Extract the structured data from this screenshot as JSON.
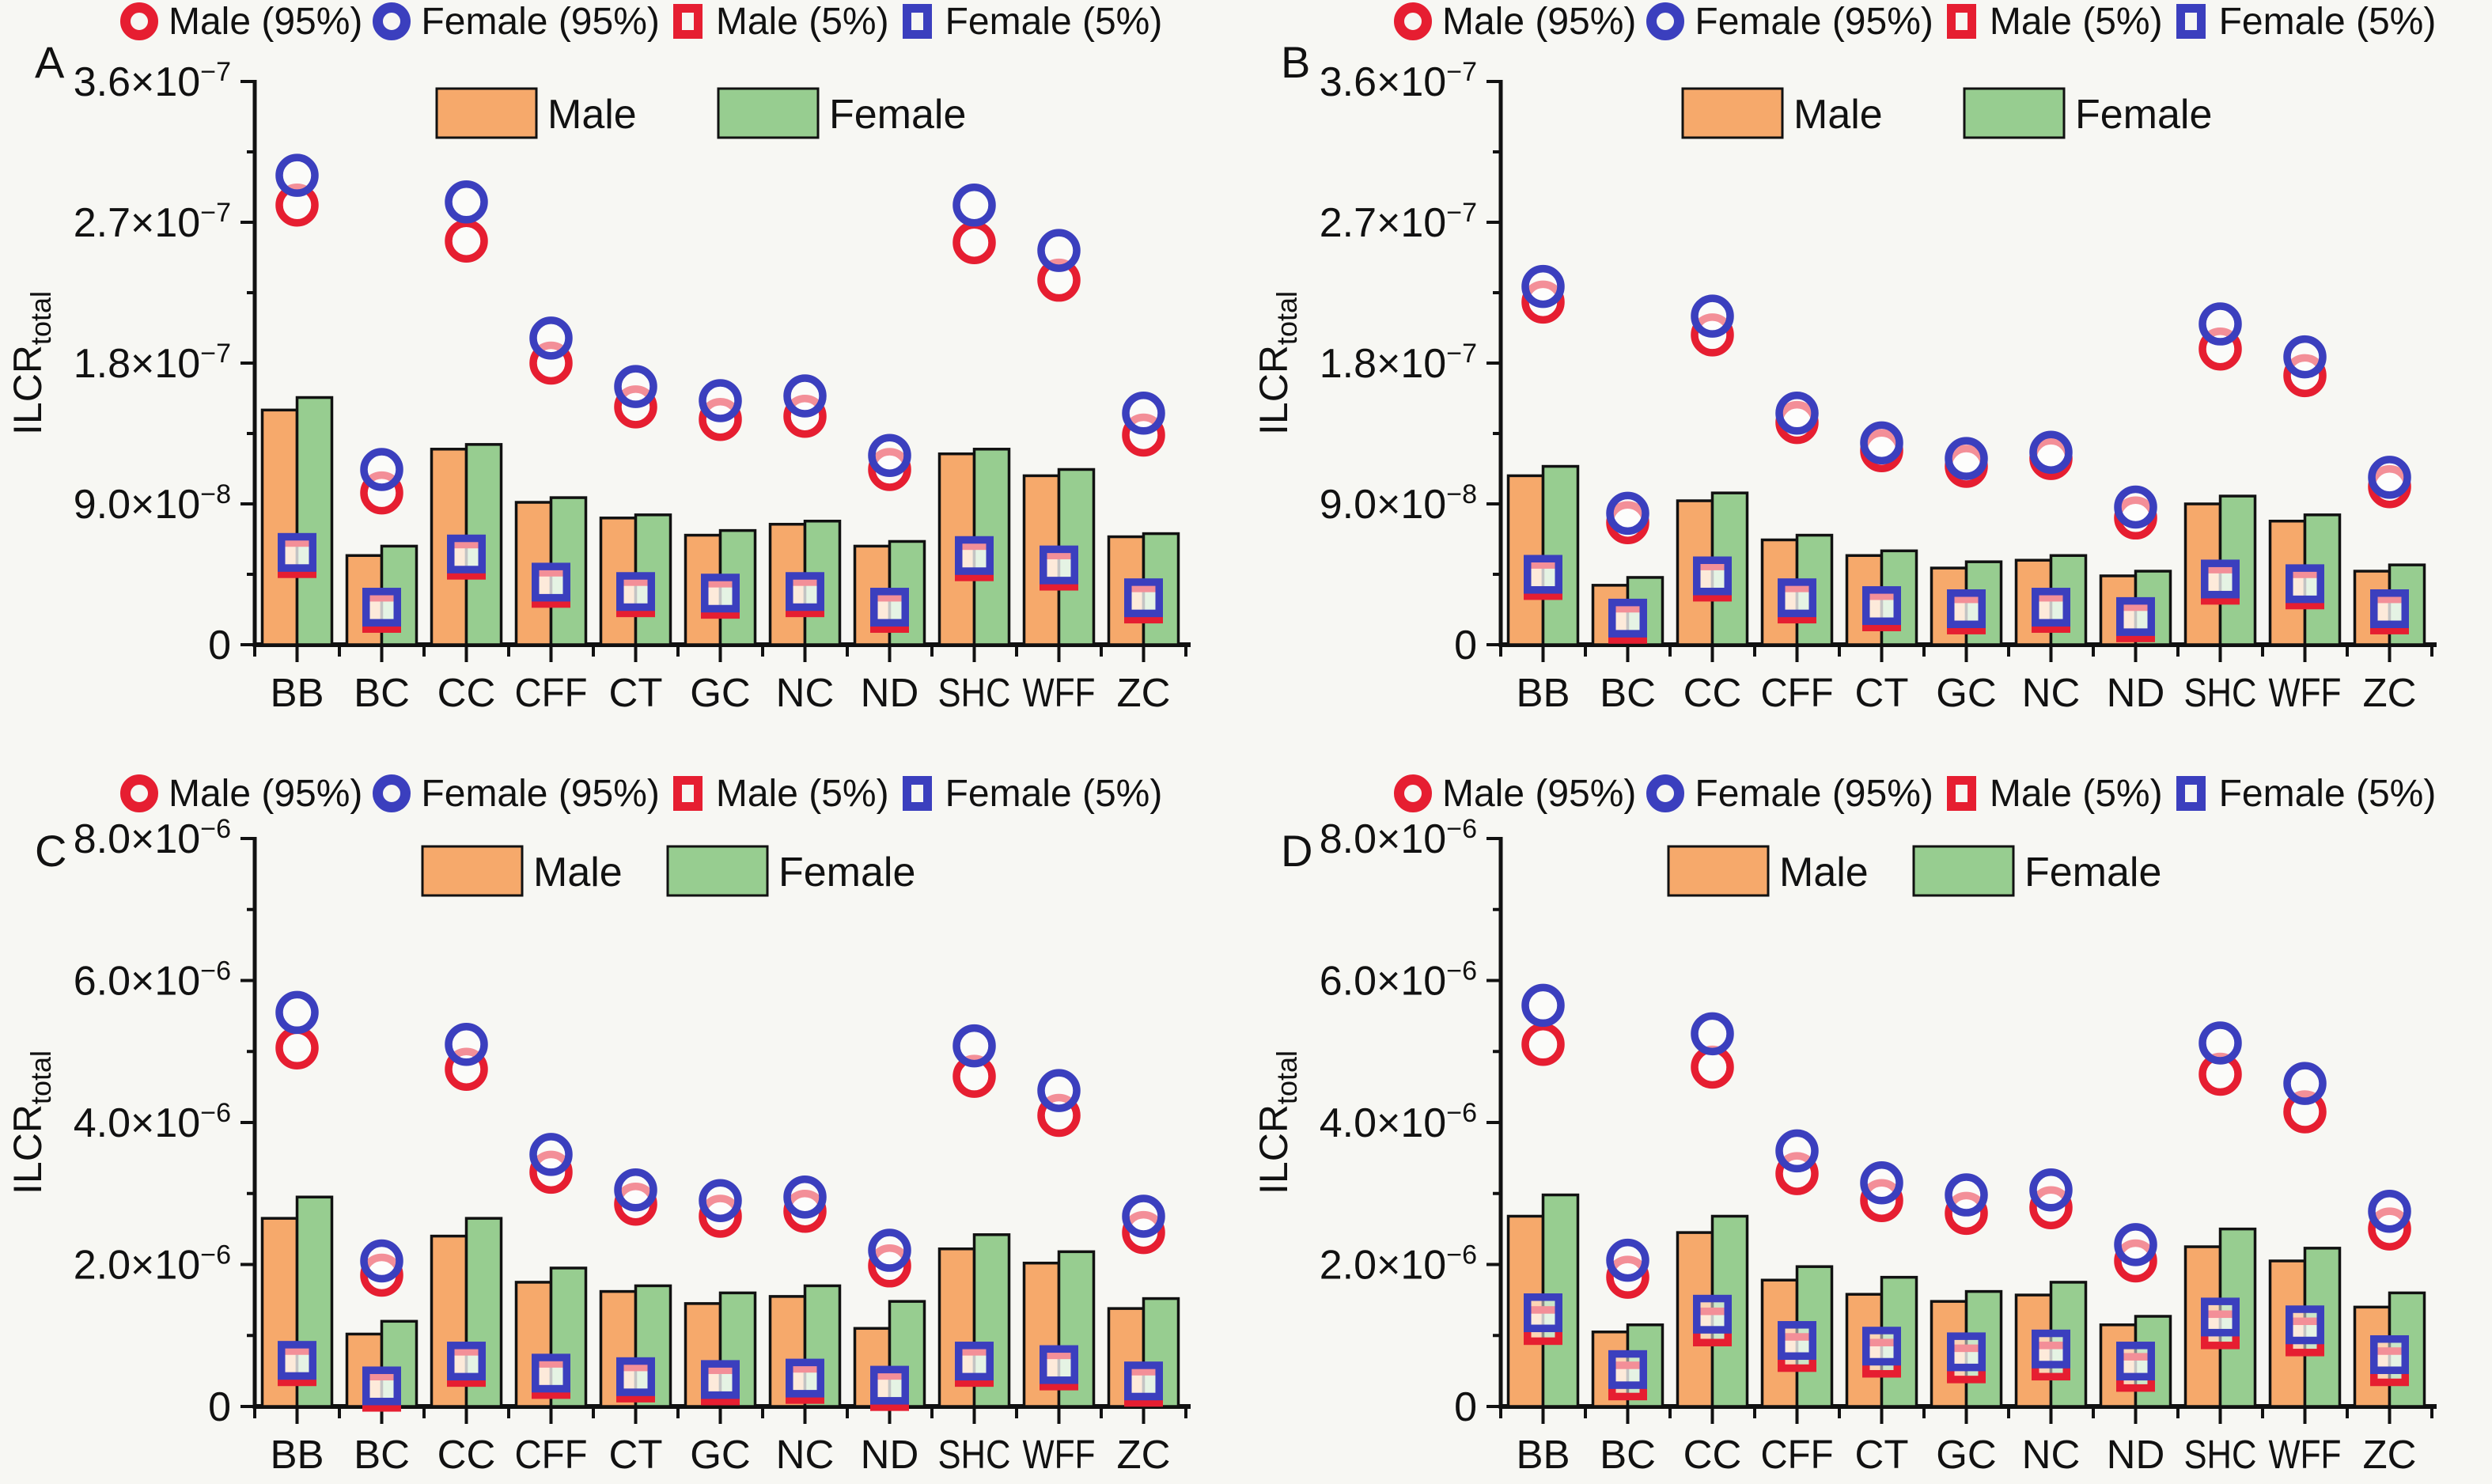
{
  "colors": {
    "male_bar": "#F6A96B",
    "female_bar": "#97CD90",
    "male_marker": "#E61E31",
    "female_marker": "#3B3FBE",
    "bar_border": "#111111",
    "axis": "#111111",
    "background": "#F7F7F3"
  },
  "marker_legend": [
    "Male (95%)",
    "Female (95%)",
    "Male (5%)",
    "Female (5%)"
  ],
  "bar_legend": [
    "Male",
    "Female"
  ],
  "ylabel": {
    "main": "ILCR",
    "sub": "total"
  },
  "categories": [
    "BB",
    "BC",
    "CC",
    "CFF",
    "CT",
    "GC",
    "NC",
    "ND",
    "SHC",
    "WFF",
    "ZC"
  ],
  "chart_data": [
    {
      "panel": "A",
      "type": "bar",
      "y_unit_exp": -8,
      "ymax": 36,
      "ytick_values": [
        0,
        9,
        18,
        27,
        36
      ],
      "yticks": [
        {
          "t": "0",
          "s": ""
        },
        {
          "t": "9.0×10",
          "s": "−8"
        },
        {
          "t": "1.8×10",
          "s": "−7"
        },
        {
          "t": "2.7×10",
          "s": "−7"
        },
        {
          "t": "3.6×10",
          "s": "−7"
        }
      ],
      "series": {
        "male_bar": [
          15.0,
          5.7,
          12.5,
          9.1,
          8.1,
          7.0,
          7.7,
          6.3,
          12.2,
          10.8,
          6.9
        ],
        "female_bar": [
          15.8,
          6.3,
          12.8,
          9.4,
          8.3,
          7.3,
          7.9,
          6.6,
          12.5,
          11.2,
          7.1
        ],
        "male_95": [
          28.1,
          9.7,
          25.8,
          18.0,
          15.2,
          14.4,
          14.6,
          11.2,
          25.7,
          23.3,
          13.4
        ],
        "female_95": [
          30.0,
          11.2,
          28.3,
          19.6,
          16.5,
          15.6,
          15.9,
          12.1,
          28.1,
          25.2,
          14.8
        ],
        "male_5": [
          5.5,
          2.0,
          5.4,
          3.6,
          3.0,
          2.9,
          3.0,
          2.0,
          5.3,
          4.7,
          2.6
        ],
        "female_5": [
          5.9,
          2.4,
          5.8,
          4.0,
          3.4,
          3.3,
          3.4,
          2.4,
          5.7,
          5.1,
          3.0
        ]
      }
    },
    {
      "panel": "B",
      "type": "bar",
      "y_unit_exp": -8,
      "ymax": 36,
      "ytick_values": [
        0,
        9,
        18,
        27,
        36
      ],
      "yticks": [
        {
          "t": "0",
          "s": ""
        },
        {
          "t": "9.0×10",
          "s": "−8"
        },
        {
          "t": "1.8×10",
          "s": "−7"
        },
        {
          "t": "2.7×10",
          "s": "−7"
        },
        {
          "t": "3.6×10",
          "s": "−7"
        }
      ],
      "series": {
        "male_bar": [
          10.8,
          3.8,
          9.2,
          6.7,
          5.7,
          4.9,
          5.4,
          4.4,
          9.0,
          7.9,
          4.7
        ],
        "female_bar": [
          11.4,
          4.3,
          9.7,
          7.0,
          6.0,
          5.3,
          5.7,
          4.7,
          9.5,
          8.3,
          5.1
        ],
        "male_95": [
          21.9,
          7.8,
          19.8,
          14.2,
          12.4,
          11.4,
          11.9,
          8.1,
          18.9,
          17.2,
          10.1
        ],
        "female_95": [
          22.9,
          8.4,
          21.0,
          14.8,
          12.9,
          11.9,
          12.3,
          8.8,
          20.5,
          18.4,
          10.7
        ],
        "male_5": [
          4.1,
          1.3,
          4.0,
          2.6,
          2.1,
          1.9,
          2.0,
          1.4,
          3.8,
          3.5,
          1.9
        ],
        "female_5": [
          4.5,
          1.7,
          4.4,
          3.0,
          2.5,
          2.3,
          2.4,
          1.8,
          4.2,
          3.9,
          2.3
        ]
      }
    },
    {
      "panel": "C",
      "type": "bar",
      "y_unit_exp": -6,
      "ymax": 8,
      "ytick_values": [
        0,
        2,
        4,
        6,
        8
      ],
      "yticks": [
        {
          "t": "0",
          "s": ""
        },
        {
          "t": "2.0×10",
          "s": "−6"
        },
        {
          "t": "4.0×10",
          "s": "−6"
        },
        {
          "t": "6.0×10",
          "s": "−6"
        },
        {
          "t": "8.0×10",
          "s": "−6"
        }
      ],
      "series": {
        "male_bar": [
          2.65,
          1.02,
          2.4,
          1.75,
          1.62,
          1.45,
          1.55,
          1.1,
          2.22,
          2.02,
          1.38
        ],
        "female_bar": [
          2.95,
          1.2,
          2.65,
          1.95,
          1.7,
          1.6,
          1.7,
          1.48,
          2.42,
          2.18,
          1.52
        ],
        "male_95": [
          5.05,
          1.85,
          4.75,
          3.3,
          2.85,
          2.68,
          2.75,
          1.98,
          4.65,
          4.1,
          2.45
        ],
        "female_95": [
          5.55,
          2.05,
          5.1,
          3.55,
          3.05,
          2.9,
          2.95,
          2.2,
          5.08,
          4.45,
          2.68
        ],
        "male_5": [
          0.56,
          0.2,
          0.55,
          0.38,
          0.33,
          0.29,
          0.31,
          0.21,
          0.55,
          0.5,
          0.27
        ],
        "female_5": [
          0.65,
          0.29,
          0.64,
          0.47,
          0.42,
          0.38,
          0.4,
          0.3,
          0.64,
          0.59,
          0.36
        ]
      }
    },
    {
      "panel": "D",
      "type": "bar",
      "y_unit_exp": -6,
      "ymax": 8,
      "ytick_values": [
        0,
        2,
        4,
        6,
        8
      ],
      "yticks": [
        {
          "t": "0",
          "s": ""
        },
        {
          "t": "2.0×10",
          "s": "−6"
        },
        {
          "t": "4.0×10",
          "s": "−6"
        },
        {
          "t": "6.0×10",
          "s": "−6"
        },
        {
          "t": "8.0×10",
          "s": "−6"
        }
      ],
      "series": {
        "male_bar": [
          2.68,
          1.05,
          2.45,
          1.78,
          1.58,
          1.48,
          1.57,
          1.15,
          2.25,
          2.05,
          1.4
        ],
        "female_bar": [
          2.98,
          1.15,
          2.68,
          1.97,
          1.82,
          1.62,
          1.75,
          1.27,
          2.5,
          2.23,
          1.6
        ],
        "male_95": [
          5.1,
          1.82,
          4.78,
          3.28,
          2.9,
          2.72,
          2.8,
          2.05,
          4.68,
          4.15,
          2.5
        ],
        "female_95": [
          5.65,
          2.06,
          5.25,
          3.6,
          3.15,
          2.98,
          3.05,
          2.28,
          5.12,
          4.55,
          2.75
        ],
        "male_5": [
          1.14,
          0.36,
          1.12,
          0.76,
          0.68,
          0.6,
          0.64,
          0.48,
          1.08,
          0.98,
          0.56
        ],
        "female_5": [
          1.32,
          0.52,
          1.3,
          0.93,
          0.85,
          0.77,
          0.81,
          0.64,
          1.26,
          1.15,
          0.73
        ]
      }
    }
  ]
}
